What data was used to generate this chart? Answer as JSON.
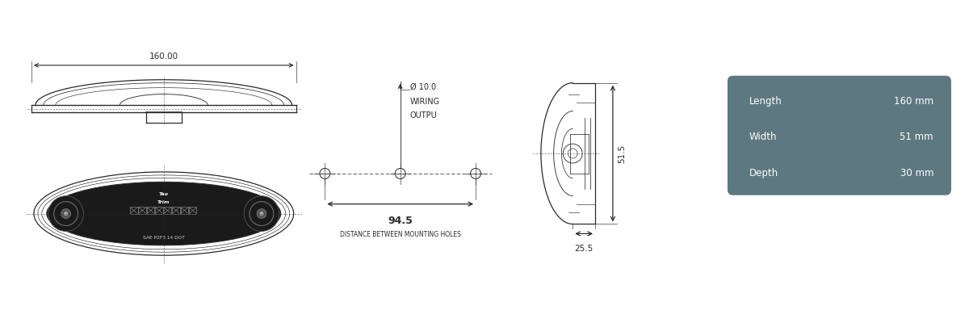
{
  "bg_color": "#ffffff",
  "line_color": "#2a2a2a",
  "table_bg": "#5d7880",
  "table_text": "#ffffff",
  "table_labels": [
    "Length",
    "Width",
    "Depth"
  ],
  "table_values": [
    "160 mm",
    "51 mm",
    "30 mm"
  ],
  "dim_160": "160.00",
  "dim_94_5": "94.5",
  "dim_51_5": "51.5",
  "dim_25_5": "25.5",
  "dim_hole": "Ø 10.0",
  "dim_wiring": "WIRING",
  "dim_output": "OUTPU",
  "dist_label": "DISTANCE BETWEEN MOUNTING HOLES",
  "sae_label": "SAE P2F3 14 DOT"
}
